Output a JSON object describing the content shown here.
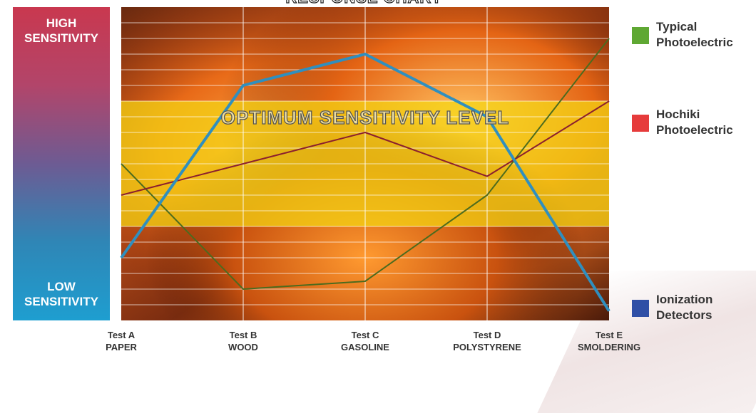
{
  "chart_data": {
    "type": "line",
    "title": "RESPONSE CHART",
    "y_axis": {
      "high_label": "HIGH SENSITIVITY",
      "low_label": "LOW SENSITIVITY",
      "range": [
        0,
        10
      ],
      "tick_labels_shown": false
    },
    "band": {
      "label": "OPTIMUM SENSITIVITY LEVEL",
      "range": [
        3,
        7
      ]
    },
    "categories": [
      {
        "test": "Test A",
        "material": "PAPER"
      },
      {
        "test": "Test B",
        "material": "WOOD"
      },
      {
        "test": "Test C",
        "material": "GASOLINE"
      },
      {
        "test": "Test D",
        "material": "POLYSTYRENE"
      },
      {
        "test": "Test E",
        "material": "SMOLDERING"
      }
    ],
    "series": [
      {
        "name": "Typical Photoelectric",
        "color": "#5fa833",
        "line_color": "#4c6b1e",
        "values": [
          5.0,
          1.0,
          1.25,
          4.0,
          9.0
        ]
      },
      {
        "name": "Hochiki Photoelectric",
        "color": "#e63b3b",
        "line_color": "#8b1f2e",
        "values": [
          4.0,
          5.0,
          6.0,
          4.6,
          7.0
        ]
      },
      {
        "name": "Ionization Detectors",
        "color": "#2f4fa6",
        "line_color": "#2f8fbf",
        "values": [
          2.0,
          7.5,
          8.5,
          6.5,
          0.3
        ]
      }
    ],
    "legend": [
      {
        "line1": "Typical",
        "line2": "Photoelectric",
        "color": "#5fa833"
      },
      {
        "line1": "Hochiki",
        "line2": "Photoelectric",
        "color": "#e63b3b"
      },
      {
        "line1": "Ionization",
        "line2": "Detectors",
        "color": "#2f4fa6"
      }
    ],
    "legend_position": "right",
    "grid": true,
    "background": "flame photograph"
  }
}
